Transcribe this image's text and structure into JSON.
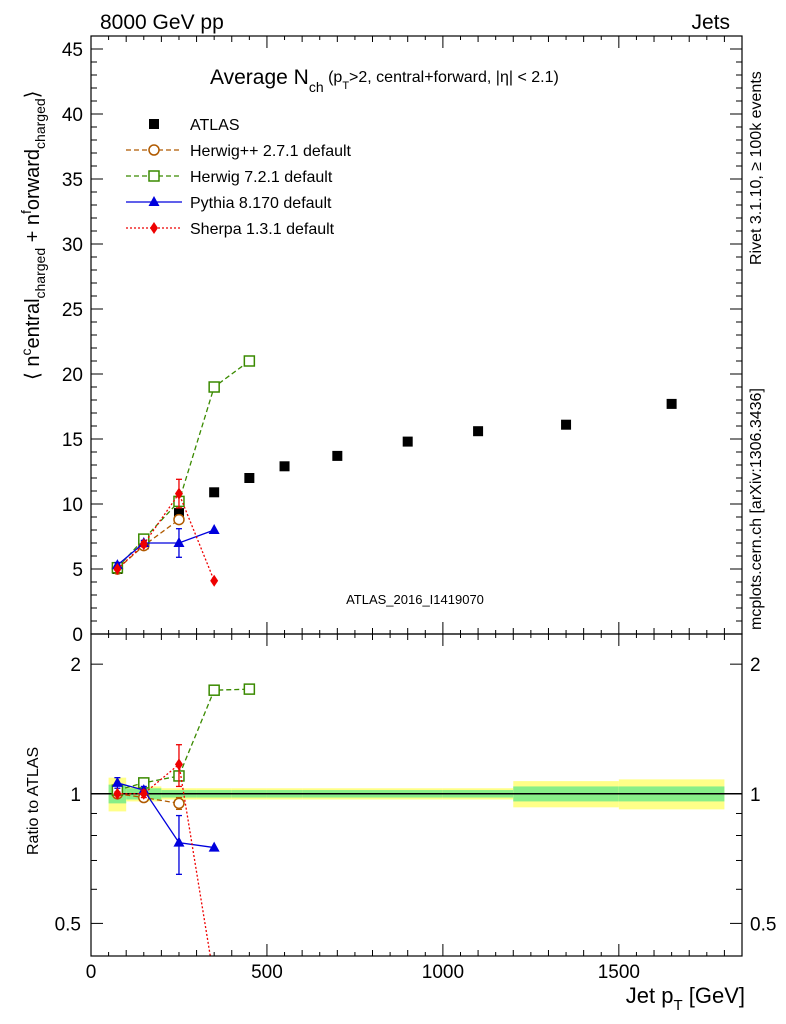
{
  "header": {
    "left": "8000 GeV pp",
    "right": "Jets"
  },
  "side_labels": {
    "rivet": "Rivet 3.1.10, ≥ 100k events",
    "mcplots": "mcplots.cern.ch [arXiv:1306.3436]"
  },
  "watermark": "ATLAS_2016_I1419070",
  "chart_data": [
    {
      "type": "scatter",
      "title": "Average N_ch (p_T>2, central+forward, |η| < 2.1)",
      "title_parts": {
        "main": "Average N",
        "sub_ch": "ch",
        "open": " (p",
        "sub_T": "T",
        "rest": ">2, central+forward, |η| < 2.1)"
      },
      "ylabel": "⟨ n^central_charged + n^forward_charged ⟩",
      "xlabel": "Jet p_T [GeV]",
      "xlim": [
        0,
        1850
      ],
      "ylim": [
        0,
        46
      ],
      "xticks": [
        0,
        500,
        1000,
        1500
      ],
      "yticks": [
        0,
        5,
        10,
        15,
        20,
        25,
        30,
        35,
        40,
        45
      ],
      "ytick_labels": [
        "0",
        "5",
        "10",
        "15",
        "20",
        "25",
        "30",
        "35",
        "40",
        "45"
      ],
      "legend_position": "top-left",
      "series": [
        {
          "name": "ATLAS",
          "color": "#000000",
          "marker": "square-filled",
          "line": "none",
          "x": [
            75,
            150,
            250,
            350,
            450,
            550,
            700,
            900,
            1100,
            1350,
            1650
          ],
          "y": [
            5.0,
            6.9,
            9.3,
            10.9,
            12.0,
            12.9,
            13.7,
            14.8,
            15.6,
            16.1,
            17.7
          ],
          "xerr": [
            25,
            50,
            50,
            50,
            50,
            50,
            100,
            100,
            100,
            150,
            150
          ],
          "yerr": [
            0,
            0,
            0,
            0,
            0,
            0,
            0,
            0,
            0,
            0,
            0
          ]
        },
        {
          "name": "Herwig++ 2.7.1 default",
          "color": "#b05a00",
          "marker": "circle-open",
          "line": "dashed",
          "x": [
            75,
            150,
            250
          ],
          "y": [
            5.0,
            6.8,
            8.8
          ],
          "yerr": [
            0.1,
            0.1,
            0.3
          ]
        },
        {
          "name": "Herwig 7.2.1 default",
          "color": "#3a8a00",
          "marker": "square-open",
          "line": "dashed",
          "x": [
            75,
            150,
            250,
            350,
            450
          ],
          "y": [
            5.1,
            7.3,
            10.2,
            19.0,
            21.0
          ],
          "yerr": [
            0,
            0,
            0,
            0,
            0
          ]
        },
        {
          "name": "Pythia 8.170 default",
          "color": "#0000dd",
          "marker": "triangle-filled",
          "line": "solid",
          "x": [
            75,
            150,
            250,
            350
          ],
          "y": [
            5.3,
            7.0,
            7.0,
            8.0
          ],
          "yerr": [
            0.2,
            0.2,
            1.1,
            0
          ]
        },
        {
          "name": "Sherpa 1.3.1 default",
          "color": "#ee0000",
          "marker": "diamond-filled",
          "line": "dotted",
          "x": [
            75,
            150,
            250,
            350
          ],
          "y": [
            5.0,
            6.9,
            10.8,
            4.1
          ],
          "yerr": [
            0.1,
            0.2,
            1.1,
            0
          ]
        }
      ]
    },
    {
      "type": "line",
      "ylabel": "Ratio to ATLAS",
      "xlabel": "Jet p_T [GeV]",
      "xlim": [
        0,
        1850
      ],
      "ylim": [
        0.42,
        2.35
      ],
      "log_y": true,
      "xticks": [
        0,
        500,
        1000,
        1500
      ],
      "xtick_labels": [
        "0",
        "500",
        "1000",
        "1500"
      ],
      "yticks": [
        0.5,
        1,
        2
      ],
      "ytick_labels": [
        "0.5",
        "1",
        "2"
      ],
      "reference_line": 1,
      "uncertainty_bands": {
        "x_edges": [
          50,
          100,
          200,
          300,
          400,
          500,
          600,
          800,
          1000,
          1200,
          1500,
          1800
        ],
        "inner": [
          0.05,
          0.03,
          0.02,
          0.02,
          0.02,
          0.02,
          0.02,
          0.02,
          0.02,
          0.04,
          0.04
        ],
        "outer": [
          0.09,
          0.04,
          0.03,
          0.03,
          0.03,
          0.03,
          0.03,
          0.03,
          0.03,
          0.07,
          0.08
        ],
        "inner_color": "#88ee88",
        "outer_color": "#ffff88"
      },
      "series": [
        {
          "name": "Herwig++ 2.7.1 default",
          "x": [
            75,
            150,
            250
          ],
          "y": [
            1.0,
            0.98,
            0.95
          ],
          "yerr": [
            0.01,
            0.01,
            0.03
          ]
        },
        {
          "name": "Herwig 7.2.1 default",
          "x": [
            75,
            150,
            250,
            350,
            450
          ],
          "y": [
            1.02,
            1.06,
            1.1,
            1.74,
            1.75
          ],
          "yerr": [
            0,
            0,
            0,
            0,
            0
          ]
        },
        {
          "name": "Pythia 8.170 default",
          "x": [
            75,
            150,
            250,
            350
          ],
          "y": [
            1.06,
            1.02,
            0.77,
            0.75
          ],
          "yerr": [
            0.03,
            0.02,
            0.12,
            0
          ]
        },
        {
          "name": "Sherpa 1.3.1 default",
          "x": [
            75,
            150,
            250,
            350
          ],
          "y": [
            1.0,
            1.0,
            1.17,
            0.37
          ],
          "yerr": [
            0.01,
            0.02,
            0.13,
            0
          ]
        }
      ]
    }
  ]
}
